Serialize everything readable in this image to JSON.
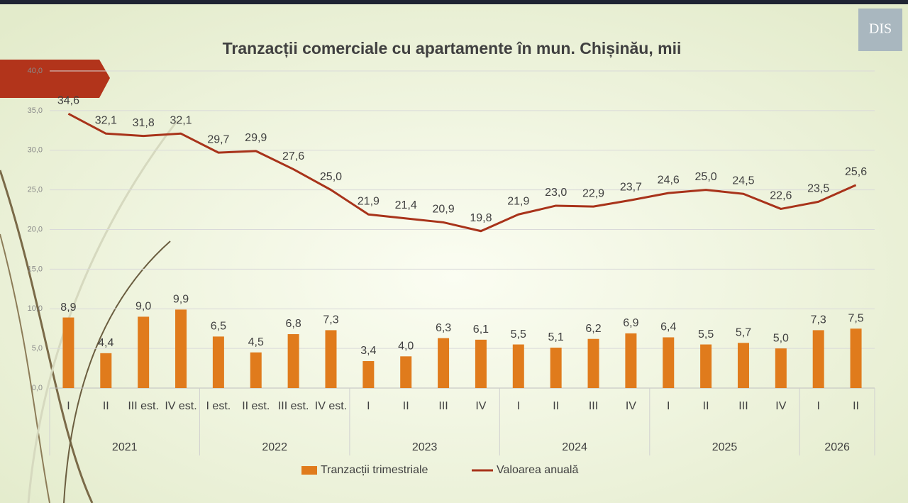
{
  "logo_text": "DIS",
  "chart_data": {
    "type": "bar-line",
    "title": "Tranzacții comerciale cu apartamente în mun. Chișinău, mii",
    "categories": [
      "I",
      "II",
      "III est.",
      "IV est.",
      "I est.",
      "II est.",
      "III est.",
      "IV est.",
      "I",
      "II",
      "III",
      "IV",
      "I",
      "II",
      "III",
      "IV",
      "I",
      "II",
      "III",
      "IV",
      "I",
      "II"
    ],
    "group_labels": [
      "2021",
      null,
      null,
      null,
      "2022",
      null,
      null,
      null,
      "2023",
      null,
      null,
      null,
      "2024",
      null,
      null,
      null,
      "2025",
      null,
      null,
      null,
      "2026",
      null
    ],
    "ylim": [
      0,
      40
    ],
    "yticks": [
      {
        "value": 0,
        "label": "0,0"
      },
      {
        "value": 5,
        "label": "5,0"
      },
      {
        "value": 10,
        "label": "10,0"
      },
      {
        "value": 15,
        "label": "15,0"
      },
      {
        "value": 20,
        "label": "20,0"
      },
      {
        "value": 25,
        "label": "25,0"
      },
      {
        "value": 30,
        "label": "30,0"
      },
      {
        "value": 35,
        "label": "35,0"
      },
      {
        "value": 40,
        "label": "40,0"
      }
    ],
    "grid": true,
    "series": [
      {
        "name": "Tranzacții trimestriale",
        "type": "bar",
        "color": "#e07b1c",
        "values": [
          8.9,
          4.4,
          9.0,
          9.9,
          6.5,
          4.5,
          6.8,
          7.3,
          3.4,
          4.0,
          6.3,
          6.1,
          5.5,
          5.1,
          6.2,
          6.9,
          6.4,
          5.5,
          5.7,
          5.0,
          7.3,
          7.5
        ],
        "value_labels": [
          "8,9",
          "4,4",
          "9,0",
          "9,9",
          "6,5",
          "4,5",
          "6,8",
          "7,3",
          "3,4",
          "4,0",
          "6,3",
          "6,1",
          "5,5",
          "5,1",
          "6,2",
          "6,9",
          "6,4",
          "5,5",
          "5,7",
          "5,0",
          "7,3",
          "7,5"
        ]
      },
      {
        "name": "Valoarea anuală",
        "type": "line",
        "color": "#a8331a",
        "values": [
          34.6,
          32.1,
          31.8,
          32.1,
          29.7,
          29.9,
          27.6,
          25.0,
          21.9,
          21.4,
          20.9,
          19.8,
          21.9,
          23.0,
          22.9,
          23.7,
          24.6,
          25.0,
          24.5,
          22.6,
          23.5,
          25.6
        ],
        "value_labels": [
          "34,6",
          "32,1",
          "31,8",
          "32,1",
          "29,7",
          "29,9",
          "27,6",
          "25,0",
          "21,9",
          "21,4",
          "20,9",
          "19,8",
          "21,9",
          "23,0",
          "22,9",
          "23,7",
          "24,6",
          "25,0",
          "24,5",
          "22,6",
          "23,5",
          "25,6"
        ]
      }
    ]
  }
}
